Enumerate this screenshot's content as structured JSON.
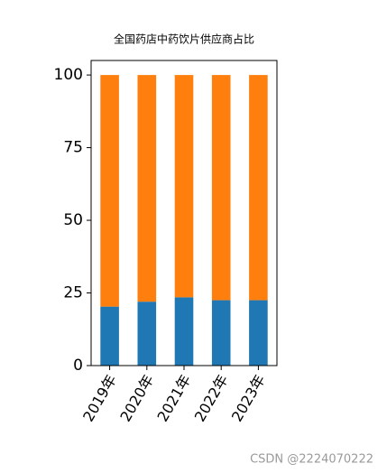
{
  "chart_data": {
    "type": "stacked_bar",
    "title": "全国药店中药饮片供应商占比",
    "categories": [
      "2019年",
      "2020年",
      "2021年",
      "2022年",
      "2023年"
    ],
    "series": [
      {
        "color": "#1f77b4",
        "values": [
          20.3,
          22,
          23.5,
          22.5,
          22.5
        ]
      },
      {
        "color": "#ff7f0e",
        "values": [
          79.7,
          78,
          76.5,
          77.5,
          77.5
        ]
      }
    ],
    "ylim": [
      0,
      105
    ],
    "yticks": [
      0,
      25,
      50,
      75,
      100
    ],
    "grid": false
  },
  "watermark": "CSDN @2224070222"
}
